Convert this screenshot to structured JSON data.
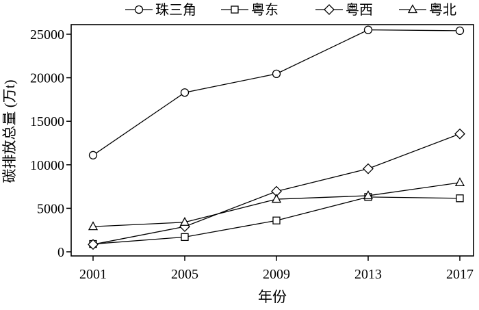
{
  "chart_data": {
    "type": "line",
    "title": "",
    "xlabel": "年份",
    "ylabel": "碳排放总量 (万t)",
    "x": [
      2001,
      2005,
      2009,
      2013,
      2017
    ],
    "x_tick_labels": [
      "2001",
      "2005",
      "2009",
      "2013",
      "2017"
    ],
    "ylim": [
      0,
      25000
    ],
    "y_ticks": [
      0,
      5000,
      10000,
      15000,
      20000,
      25000
    ],
    "y_tick_labels": [
      "0",
      "5000",
      "10000",
      "15000",
      "20000",
      "25000"
    ],
    "grid": false,
    "legend_position": "top",
    "series": [
      {
        "name": "珠三角",
        "marker": "circle",
        "values": [
          11100,
          18300,
          20450,
          25500,
          25400
        ]
      },
      {
        "name": "粤东",
        "marker": "square",
        "values": [
          900,
          1700,
          3600,
          6300,
          6150
        ]
      },
      {
        "name": "粤西",
        "marker": "diamond",
        "values": [
          850,
          2900,
          6950,
          9550,
          13550
        ]
      },
      {
        "name": "粤北",
        "marker": "triangle",
        "values": [
          2900,
          3400,
          6050,
          6450,
          7950
        ]
      }
    ],
    "colors": {
      "line": "#000000",
      "marker_fill": "#ffffff"
    }
  }
}
